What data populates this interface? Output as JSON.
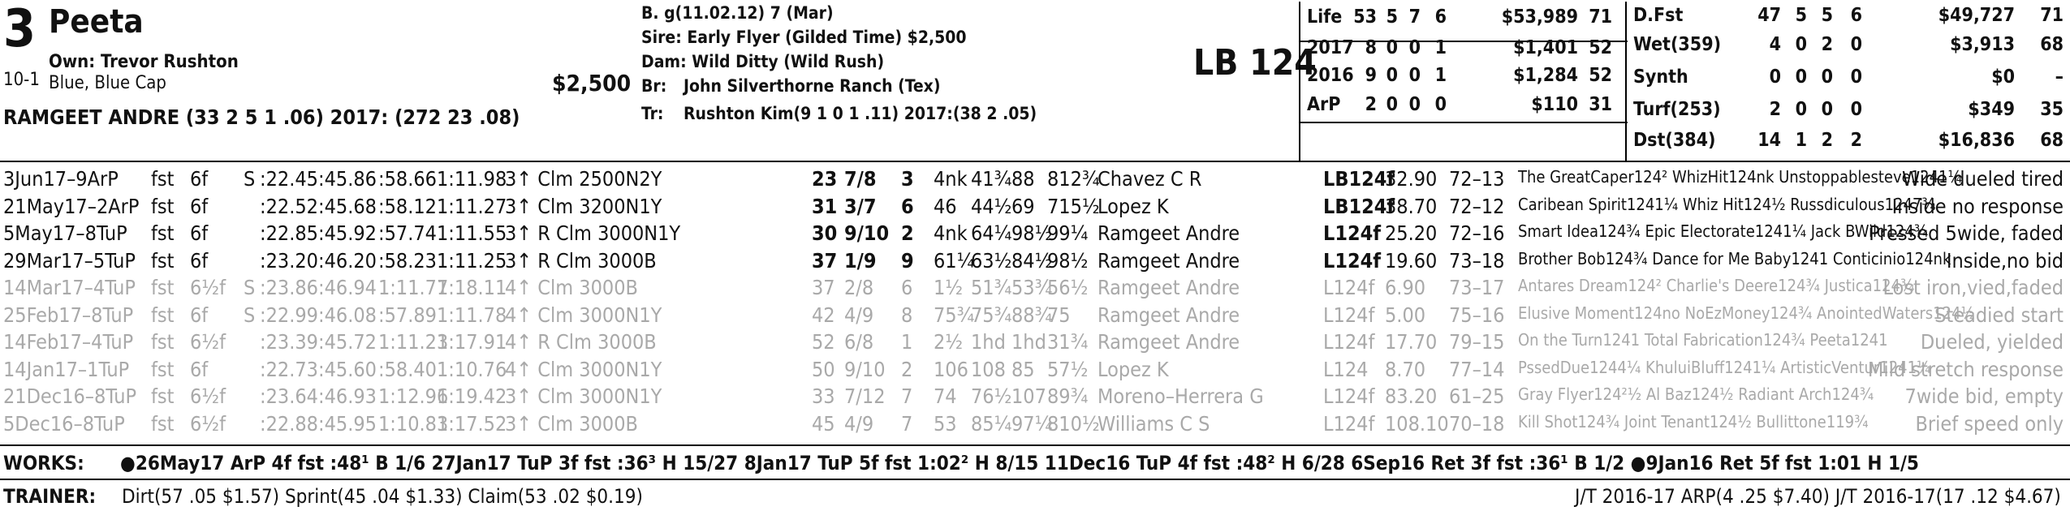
{
  "header": {
    "program_number": "3",
    "horse_name": "Peeta",
    "odds": "10-1",
    "owner": "Own: Trevor Rushton",
    "silks": "Blue, Blue Cap",
    "claim_price": "$2,500",
    "jockey": "RAMGEET ANDRE (33 2 5 1 .06) 2017: (272 23 .08)",
    "sex_age": "B. g(11.02.12) 7 (Mar)",
    "sire": "Sire: Early Flyer (Gilded Time) $2,500",
    "dam": "Dam: Wild Ditty (Wild Rush)",
    "breeder_label": "Br:",
    "breeder": "John Silverthorne Ranch (Tex)",
    "trainer_label": "Tr:",
    "trainer": "Rushton Kim(9 1 0 1 .11) 2017:(38 2 .05)",
    "medication_weight": "LB 124"
  },
  "stats_left": [
    {
      "label": "Life",
      "st": "53",
      "w": "5",
      "p": "7",
      "s": "6",
      "earn": "$53,989",
      "sp": "71"
    },
    {
      "label": "2017",
      "st": "8",
      "w": "0",
      "p": "0",
      "s": "1",
      "earn": "$1,401",
      "sp": "52"
    },
    {
      "label": "2016",
      "st": "9",
      "w": "0",
      "p": "0",
      "s": "1",
      "earn": "$1,284",
      "sp": "52"
    },
    {
      "label": "ArP",
      "st": "2",
      "w": "0",
      "p": "0",
      "s": "0",
      "earn": "$110",
      "sp": "31"
    }
  ],
  "stats_right": [
    {
      "label": "D.Fst",
      "st": "47",
      "w": "5",
      "p": "5",
      "s": "6",
      "earn": "$49,727",
      "sp": "71"
    },
    {
      "label": "Wet(359)",
      "st": "4",
      "w": "0",
      "p": "2",
      "s": "0",
      "earn": "$3,913",
      "sp": "68"
    },
    {
      "label": "Synth",
      "st": "0",
      "w": "0",
      "p": "0",
      "s": "0",
      "earn": "$0",
      "sp": "–"
    },
    {
      "label": "Turf(253)",
      "st": "2",
      "w": "0",
      "p": "0",
      "s": "0",
      "earn": "$349",
      "sp": "35"
    },
    {
      "label": "Dst(384)",
      "st": "14",
      "w": "1",
      "p": "2",
      "s": "2",
      "earn": "$16,836",
      "sp": "68"
    }
  ],
  "past_performances": [
    {
      "date": "3Jun17–9ArP",
      "trk": "fst",
      "dist": "6f",
      "mark": "S",
      "f1": ":22.45",
      "f2": ":45.86",
      "f3": ":58.66",
      "fin": "1:11.98",
      "race": "3↑ Clm 2500N2Y",
      "beyer": "23",
      "pp": "7/8",
      "st": "3",
      "c1": "4nk",
      "c2": "41¾",
      "c3": "88",
      "fn": "812¾",
      "jockey": "Chavez C R",
      "med": "LB124f",
      "odds": "32.90",
      "pace": "72–13",
      "comment": "The GreatCaper124² WhizHit124nk Unstoppablesteve1241¼",
      "trip": "Wide dueled tired",
      "gray": false
    },
    {
      "date": "21May17–2ArP",
      "trk": "fst",
      "dist": "6f",
      "mark": "",
      "f1": ":22.52",
      "f2": ":45.68",
      "f3": ":58.12",
      "fin": "1:11.27",
      "race": "3↑ Clm 3200N1Y",
      "beyer": "31",
      "pp": "3/7",
      "st": "6",
      "c1": "46",
      "c2": "44½",
      "c3": "69",
      "fn": "715½",
      "jockey": "Lopez K",
      "med": "LB124f",
      "odds": "38.70",
      "pace": "72–12",
      "comment": "Caribean Spirit1241¼ Whiz Hit124½ Russdiculous1247¾",
      "trip": "Inside no response",
      "gray": false
    },
    {
      "date": "5May17–8TuP",
      "trk": "fst",
      "dist": "6f",
      "mark": "",
      "f1": ":22.85",
      "f2": ":45.92",
      "f3": ":57.74",
      "fin": "1:11.55",
      "race": "3↑ R Clm 3000N1Y",
      "beyer": "30",
      "pp": "9/10",
      "st": "2",
      "c1": "4nk",
      "c2": "64¼",
      "c3": "98½",
      "fn": "99¼",
      "jockey": "Ramgeet Andre",
      "med": "L124f",
      "odds": "25.20",
      "pace": "72–16",
      "comment": "Smart Idea124¾ Epic Electorate1241¼ Jack BWild124¾",
      "trip": "Pressed 5wide, faded",
      "gray": false
    },
    {
      "date": "29Mar17–5TuP",
      "trk": "fst",
      "dist": "6f",
      "mark": "",
      "f1": ":23.20",
      "f2": ":46.20",
      "f3": ":58.23",
      "fin": "1:11.25",
      "race": "3↑ R Clm 3000B",
      "beyer": "37",
      "pp": "1/9",
      "st": "9",
      "c1": "61¼",
      "c2": "63½",
      "c3": "84½",
      "fn": "98½",
      "jockey": "Ramgeet Andre",
      "med": "L124f",
      "odds": "19.60",
      "pace": "73–18",
      "comment": "Brother Bob124¾ Dance for Me Baby1241 Conticinio124nk",
      "trip": "Inside,no bid",
      "gray": false
    },
    {
      "date": "14Mar17–4TuP",
      "trk": "fst",
      "dist": "6½f",
      "mark": "S",
      "f1": ":23.86",
      "f2": ":46.94",
      "f3": "1:11.77",
      "fin": "1:18.11",
      "race": "4↑ Clm 3000B",
      "beyer": "37",
      "pp": "2/8",
      "st": "6",
      "c1": "1½",
      "c2": "51¾",
      "c3": "53¾",
      "fn": "56½",
      "jockey": "Ramgeet Andre",
      "med": "L124f",
      "odds": "6.90",
      "pace": "73–17",
      "comment": "Antares Dream124² Charlie's Deere124¾ Justica124¾",
      "trip": "Lost iron,vied,faded",
      "gray": true
    },
    {
      "date": "25Feb17–8TuP",
      "trk": "fst",
      "dist": "6f",
      "mark": "S",
      "f1": ":22.99",
      "f2": ":46.08",
      "f3": ":57.89",
      "fin": "1:11.78",
      "race": "4↑ Clm 3000N1Y",
      "beyer": "42",
      "pp": "4/9",
      "st": "8",
      "c1": "75¾",
      "c2": "75¾",
      "c3": "88¾",
      "fn": "75",
      "jockey": "Ramgeet Andre",
      "med": "L124f",
      "odds": "5.00",
      "pace": "75–16",
      "comment": "Elusive Moment124no NoEzMoney124¾ AnointedWaters124½",
      "trip": "Steadied start",
      "gray": true
    },
    {
      "date": "14Feb17–4TuP",
      "trk": "fst",
      "dist": "6½f",
      "mark": "",
      "f1": ":23.39",
      "f2": ":45.72",
      "f3": "1:11.23",
      "fin": "1:17.91",
      "race": "4↑ R Clm 3000B",
      "beyer": "52",
      "pp": "6/8",
      "st": "1",
      "c1": "2½",
      "c2": "1hd",
      "c3": "1hd",
      "fn": "31¾",
      "jockey": "Ramgeet Andre",
      "med": "L124f",
      "odds": "17.70",
      "pace": "79–15",
      "comment": "On the Turn1241 Total Fabrication124¾ Peeta1241",
      "trip": "Dueled, yielded",
      "gray": true
    },
    {
      "date": "14Jan17–1TuP",
      "trk": "fst",
      "dist": "6f",
      "mark": "",
      "f1": ":22.73",
      "f2": ":45.60",
      "f3": ":58.40",
      "fin": "1:10.76",
      "race": "4↑ Clm 3000N1Y",
      "beyer": "50",
      "pp": "9/10",
      "st": "2",
      "c1": "106",
      "c2": "108",
      "c3": "85",
      "fn": "57½",
      "jockey": "Lopez K",
      "med": "L124",
      "odds": "8.70",
      "pace": "77–14",
      "comment": "PssedDue1244¼ KhuluiBluff1241¼ ArtisticVentur1241¼",
      "trip": "Mild stretch response",
      "gray": true
    },
    {
      "date": "21Dec16–8TuP",
      "trk": "fst",
      "dist": "6½f",
      "mark": "",
      "f1": ":23.64",
      "f2": ":46.93",
      "f3": "1:12.96",
      "fin": "1:19.42",
      "race": "3↑ Clm 3000N1Y",
      "beyer": "33",
      "pp": "7/12",
      "st": "7",
      "c1": "74",
      "c2": "76½",
      "c3": "107",
      "fn": "89¾",
      "jockey": "Moreno–Herrera G",
      "med": "L124f",
      "odds": "83.20",
      "pace": "61–25",
      "comment": "Gray Flyer124²½ Al Baz124½ Radiant Arch124¾",
      "trip": "7wide bid, empty",
      "gray": true
    },
    {
      "date": "5Dec16–8TuP",
      "trk": "fst",
      "dist": "6½f",
      "mark": "",
      "f1": ":22.88",
      "f2": ":45.95",
      "f3": "1:10.83",
      "fin": "1:17.52",
      "race": "3↑ Clm 3000B",
      "beyer": "45",
      "pp": "4/9",
      "st": "7",
      "c1": "53",
      "c2": "85¼",
      "c3": "97¼",
      "fn": "810½",
      "jockey": "Williams C S",
      "med": "L124f",
      "odds": "108.10",
      "pace": "70–18",
      "comment": "Kill Shot124¾ Joint Tenant124½ Bullittone119¾",
      "trip": "Brief speed only",
      "gray": true
    }
  ],
  "works": {
    "label": "WORKS:",
    "text": "●26May17 ArP 4f fst :48¹ B 1/6   27Jan17 TuP 3f fst :36³ H 15/27   8Jan17 TuP 5f fst 1:02² H 8/15   11Dec16 TuP 4f fst :48² H 6/28   6Sep16 Ret 3f fst :36¹ B 1/2   ●9Jan16 Ret 5f fst 1:01 H 1/5"
  },
  "trainer_stats": {
    "label": "TRAINER:",
    "text": "Dirt(57 .05 $1.57) Sprint(45 .04 $1.33) Claim(53 .02 $0.19)",
    "jt": "J/T 2016-17 ARP(4 .25 $7.40)  J/T 2016-17(17 .12 $4.67)"
  }
}
